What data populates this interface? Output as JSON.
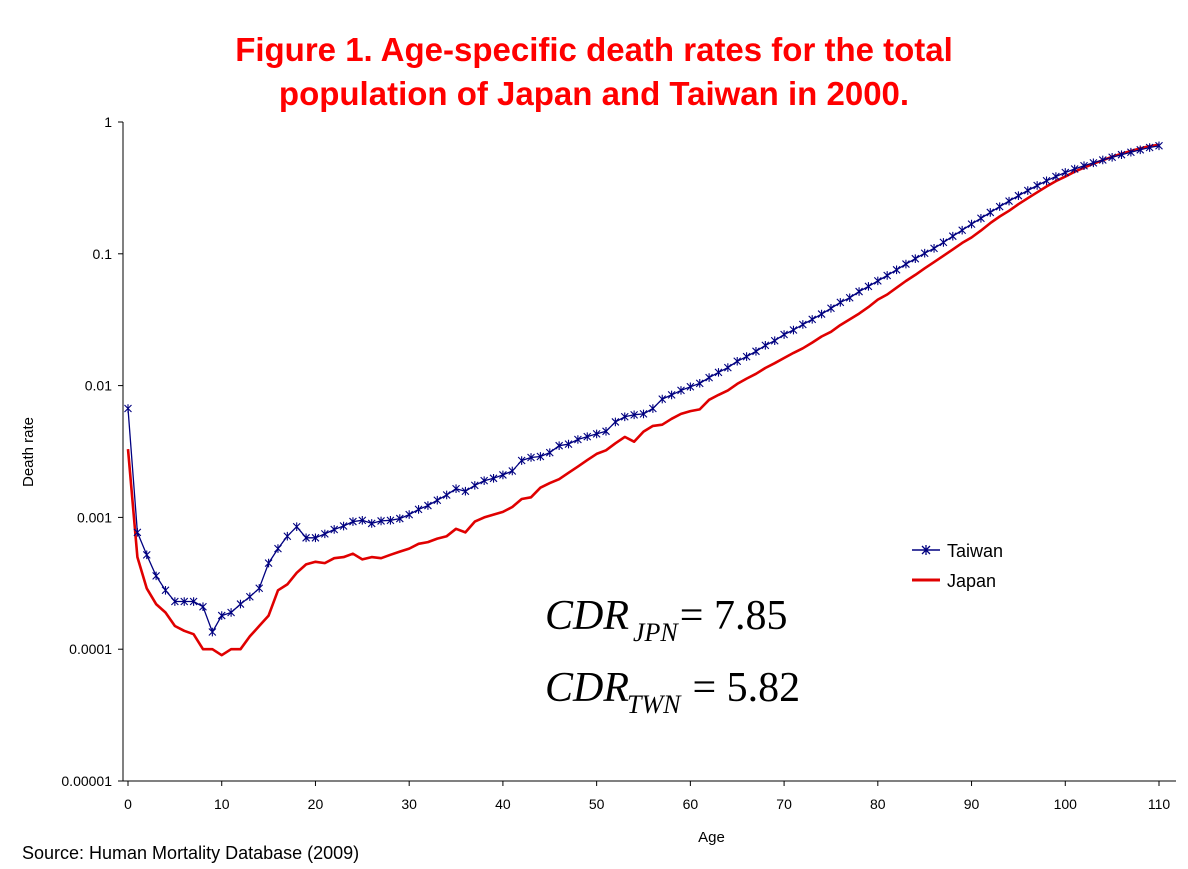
{
  "title": {
    "line1": "Figure 1. Age-specific death rates for the total",
    "line2": "population of Japan and Taiwan in 2000."
  },
  "source": "Source: Human Mortality Database (2009)",
  "colors": {
    "title": "#ff0000",
    "taiwan": "#000080",
    "japan": "#e00000",
    "axis": "#000000"
  },
  "cdr": {
    "japan": {
      "base": "CDR",
      "sub": "JPN",
      "value": "= 7.85"
    },
    "taiwan": {
      "base": "CDR",
      "sub": "TWN",
      "value": "= 5.82"
    }
  },
  "chart_data": {
    "type": "line",
    "xlabel": "Age",
    "ylabel": "Death rate",
    "xlim": [
      0,
      110
    ],
    "ylim": [
      1e-05,
      1
    ],
    "yscale": "log",
    "grid": false,
    "legend_position": "right",
    "x_ticks": [
      0,
      10,
      20,
      30,
      40,
      50,
      60,
      70,
      80,
      90,
      100,
      110
    ],
    "y_ticks": [
      "0.00001",
      "0.0001",
      "0.001",
      "0.01",
      "0.1",
      "1"
    ],
    "series": [
      {
        "name": "Taiwan",
        "marker": "asterisk",
        "x": [
          0,
          1,
          2,
          3,
          4,
          5,
          6,
          7,
          8,
          9,
          10,
          11,
          12,
          13,
          14,
          15,
          16,
          17,
          18,
          19,
          20,
          21,
          22,
          23,
          24,
          25,
          26,
          27,
          28,
          29,
          30,
          31,
          32,
          33,
          34,
          35,
          36,
          37,
          38,
          39,
          40,
          41,
          42,
          43,
          44,
          45,
          46,
          47,
          48,
          49,
          50,
          51,
          52,
          53,
          54,
          55,
          56,
          57,
          58,
          59,
          60,
          61,
          62,
          63,
          64,
          65,
          66,
          67,
          68,
          69,
          70,
          71,
          72,
          73,
          74,
          75,
          76,
          77,
          78,
          79,
          80,
          81,
          82,
          83,
          84,
          85,
          86,
          87,
          88,
          89,
          90,
          91,
          92,
          93,
          94,
          95,
          96,
          97,
          98,
          99,
          100,
          101,
          102,
          103,
          104,
          105,
          106,
          107,
          108,
          109,
          110
        ],
        "values": [
          0.0067,
          0.00077,
          0.00052,
          0.00036,
          0.00028,
          0.00023,
          0.00023,
          0.00023,
          0.00021,
          0.000135,
          0.00018,
          0.00019,
          0.00022,
          0.00025,
          0.00029,
          0.00045,
          0.00058,
          0.00072,
          0.00085,
          0.0007,
          0.0007,
          0.00075,
          0.00081,
          0.00086,
          0.00093,
          0.00095,
          0.0009,
          0.00094,
          0.00095,
          0.00098,
          0.00105,
          0.00115,
          0.00123,
          0.00135,
          0.00148,
          0.00165,
          0.00158,
          0.00175,
          0.0019,
          0.00198,
          0.0021,
          0.00225,
          0.0027,
          0.00285,
          0.0029,
          0.0031,
          0.0035,
          0.0036,
          0.0039,
          0.0041,
          0.0043,
          0.0045,
          0.0053,
          0.0058,
          0.006,
          0.0061,
          0.0067,
          0.0079,
          0.0085,
          0.0092,
          0.0098,
          0.0104,
          0.0115,
          0.0126,
          0.0137,
          0.0153,
          0.0166,
          0.0182,
          0.0202,
          0.0219,
          0.0244,
          0.0264,
          0.0291,
          0.0318,
          0.0349,
          0.0386,
          0.0428,
          0.0464,
          0.0517,
          0.0566,
          0.0623,
          0.0685,
          0.0756,
          0.0836,
          0.0918,
          0.101,
          0.11,
          0.122,
          0.136,
          0.151,
          0.168,
          0.186,
          0.206,
          0.228,
          0.251,
          0.276,
          0.302,
          0.33,
          0.358,
          0.386,
          0.414,
          0.44,
          0.466,
          0.49,
          0.515,
          0.54,
          0.565,
          0.59,
          0.615,
          0.64,
          0.66
        ]
      },
      {
        "name": "Japan",
        "marker": "none",
        "x": [
          0,
          1,
          2,
          3,
          4,
          5,
          6,
          7,
          8,
          9,
          10,
          11,
          12,
          13,
          14,
          15,
          16,
          17,
          18,
          19,
          20,
          21,
          22,
          23,
          24,
          25,
          26,
          27,
          28,
          29,
          30,
          31,
          32,
          33,
          34,
          35,
          36,
          37,
          38,
          39,
          40,
          41,
          42,
          43,
          44,
          45,
          46,
          47,
          48,
          49,
          50,
          51,
          52,
          53,
          54,
          55,
          56,
          57,
          58,
          59,
          60,
          61,
          62,
          63,
          64,
          65,
          66,
          67,
          68,
          69,
          70,
          71,
          72,
          73,
          74,
          75,
          76,
          77,
          78,
          79,
          80,
          81,
          82,
          83,
          84,
          85,
          86,
          87,
          88,
          89,
          90,
          91,
          92,
          93,
          94,
          95,
          96,
          97,
          98,
          99,
          100,
          101,
          102,
          103,
          104,
          105,
          106,
          107,
          108,
          109,
          110
        ],
        "values": [
          0.0033,
          0.0005,
          0.00029,
          0.00022,
          0.00019,
          0.00015,
          0.000138,
          0.00013,
          0.0001,
          0.0001,
          9e-05,
          0.0001,
          0.0001,
          0.000125,
          0.00015,
          0.00018,
          0.00028,
          0.00031,
          0.00038,
          0.00044,
          0.00046,
          0.00045,
          0.00049,
          0.0005,
          0.00053,
          0.00048,
          0.0005,
          0.00049,
          0.00052,
          0.00055,
          0.00058,
          0.00063,
          0.00065,
          0.00069,
          0.00072,
          0.00082,
          0.00077,
          0.00093,
          0.001,
          0.00105,
          0.0011,
          0.0012,
          0.00138,
          0.00142,
          0.00168,
          0.00182,
          0.00195,
          0.00218,
          0.00243,
          0.00272,
          0.00303,
          0.00323,
          0.00365,
          0.00408,
          0.00375,
          0.00448,
          0.00495,
          0.00505,
          0.0056,
          0.0061,
          0.0064,
          0.0066,
          0.0078,
          0.0085,
          0.0092,
          0.0103,
          0.0113,
          0.0123,
          0.0136,
          0.0148,
          0.0162,
          0.0177,
          0.0192,
          0.0212,
          0.0236,
          0.0256,
          0.0288,
          0.0318,
          0.0352,
          0.0394,
          0.0449,
          0.0491,
          0.0553,
          0.0622,
          0.0692,
          0.0776,
          0.0865,
          0.0965,
          0.108,
          0.121,
          0.133,
          0.15,
          0.171,
          0.192,
          0.212,
          0.238,
          0.264,
          0.293,
          0.324,
          0.356,
          0.385,
          0.42,
          0.45,
          0.483,
          0.513,
          0.544,
          0.575,
          0.603,
          0.63,
          0.655,
          0.672
        ]
      }
    ]
  }
}
